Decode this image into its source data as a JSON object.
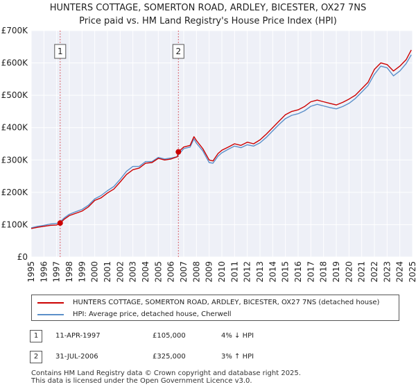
{
  "title_line1": "HUNTERS COTTAGE, SOMERTON ROAD, ARDLEY, BICESTER, OX27 7NS",
  "title_line2": "Price paid vs. HM Land Registry's House Price Index (HPI)",
  "chart_data": {
    "type": "line",
    "title": "HUNTERS COTTAGE, SOMERTON ROAD, ARDLEY, BICESTER, OX27 7NS — Price paid vs. HM Land Registry's House Price Index (HPI)",
    "xlabel": "",
    "ylabel": "",
    "xlim": [
      1995,
      2025
    ],
    "ylim": [
      0,
      700000
    ],
    "grid": true,
    "x_ticks": [
      "1995",
      "1996",
      "1997",
      "1998",
      "1999",
      "2000",
      "2001",
      "2002",
      "2003",
      "2004",
      "2005",
      "2006",
      "2007",
      "2008",
      "2009",
      "2010",
      "2011",
      "2012",
      "2013",
      "2014",
      "2015",
      "2016",
      "2017",
      "2018",
      "2019",
      "2020",
      "2021",
      "2022",
      "2023",
      "2024",
      "2025"
    ],
    "y_ticks": [
      {
        "value": 0,
        "label": "£0"
      },
      {
        "value": 100000,
        "label": "£100K"
      },
      {
        "value": 200000,
        "label": "£200K"
      },
      {
        "value": 300000,
        "label": "£300K"
      },
      {
        "value": 400000,
        "label": "£400K"
      },
      {
        "value": 500000,
        "label": "£500K"
      },
      {
        "value": 600000,
        "label": "£600K"
      },
      {
        "value": 700000,
        "label": "£700K"
      }
    ],
    "series": [
      {
        "name": "HUNTERS COTTAGE, SOMERTON ROAD, ARDLEY, BICESTER, OX27 7NS (detached house)",
        "color": "#cc0000",
        "x": [
          1995.0,
          1995.5,
          1996.0,
          1996.5,
          1997.0,
          1997.28,
          1997.6,
          1998.0,
          1998.5,
          1999.0,
          1999.5,
          2000.0,
          2000.5,
          2001.0,
          2001.5,
          2002.0,
          2002.5,
          2003.0,
          2003.5,
          2004.0,
          2004.5,
          2005.0,
          2005.5,
          2006.0,
          2006.5,
          2006.58,
          2007.0,
          2007.5,
          2007.8,
          2008.0,
          2008.5,
          2009.0,
          2009.3,
          2009.7,
          2010.0,
          2010.5,
          2011.0,
          2011.5,
          2012.0,
          2012.5,
          2013.0,
          2013.5,
          2014.0,
          2014.5,
          2015.0,
          2015.5,
          2016.0,
          2016.5,
          2017.0,
          2017.5,
          2018.0,
          2018.5,
          2019.0,
          2019.5,
          2020.0,
          2020.5,
          2021.0,
          2021.5,
          2022.0,
          2022.5,
          2023.0,
          2023.5,
          2024.0,
          2024.5,
          2024.9
        ],
        "values": [
          88000,
          92000,
          95000,
          98000,
          99000,
          105000,
          117000,
          128000,
          135000,
          142000,
          155000,
          175000,
          183000,
          198000,
          210000,
          232000,
          255000,
          270000,
          275000,
          290000,
          292000,
          305000,
          300000,
          303000,
          310000,
          325000,
          340000,
          345000,
          372000,
          360000,
          335000,
          300000,
          297000,
          320000,
          330000,
          340000,
          350000,
          345000,
          355000,
          350000,
          362000,
          380000,
          400000,
          420000,
          440000,
          450000,
          455000,
          465000,
          480000,
          485000,
          480000,
          475000,
          470000,
          478000,
          488000,
          500000,
          520000,
          540000,
          580000,
          600000,
          595000,
          575000,
          590000,
          610000,
          640000
        ]
      },
      {
        "name": "HPI: Average price, detached house, Cherwell",
        "color": "#5b8fc9",
        "x": [
          1995.0,
          1995.5,
          1996.0,
          1996.5,
          1997.0,
          1997.28,
          1997.6,
          1998.0,
          1998.5,
          1999.0,
          1999.5,
          2000.0,
          2000.5,
          2001.0,
          2001.5,
          2002.0,
          2002.5,
          2003.0,
          2003.5,
          2004.0,
          2004.5,
          2005.0,
          2005.5,
          2006.0,
          2006.5,
          2006.58,
          2007.0,
          2007.5,
          2007.8,
          2008.0,
          2008.5,
          2009.0,
          2009.3,
          2009.7,
          2010.0,
          2010.5,
          2011.0,
          2011.5,
          2012.0,
          2012.5,
          2013.0,
          2013.5,
          2014.0,
          2014.5,
          2015.0,
          2015.5,
          2016.0,
          2016.5,
          2017.0,
          2017.5,
          2018.0,
          2018.5,
          2019.0,
          2019.5,
          2020.0,
          2020.5,
          2021.0,
          2021.5,
          2022.0,
          2022.5,
          2023.0,
          2023.5,
          2024.0,
          2024.5,
          2024.9
        ],
        "values": [
          90000,
          95000,
          98000,
          102000,
          104000,
          109000,
          121000,
          132000,
          140000,
          147000,
          160000,
          180000,
          190000,
          205000,
          218000,
          240000,
          265000,
          280000,
          280000,
          295000,
          295000,
          308000,
          303000,
          306000,
          310000,
          316000,
          335000,
          340000,
          365000,
          352000,
          328000,
          292000,
          290000,
          312000,
          322000,
          333000,
          343000,
          338000,
          347000,
          343000,
          353000,
          370000,
          390000,
          410000,
          428000,
          438000,
          443000,
          452000,
          466000,
          472000,
          467000,
          462000,
          458000,
          465000,
          475000,
          490000,
          510000,
          530000,
          565000,
          590000,
          585000,
          560000,
          575000,
          598000,
          625000
        ]
      }
    ],
    "sale_markers": [
      {
        "label": "1",
        "x": 1997.28,
        "value": 105000
      },
      {
        "label": "2",
        "x": 2006.58,
        "value": 325000
      }
    ]
  },
  "legend": [
    {
      "text": "HUNTERS COTTAGE, SOMERTON ROAD, ARDLEY, BICESTER, OX27 7NS (detached house)",
      "color": "#cc0000"
    },
    {
      "text": "HPI: Average price, detached house, Cherwell",
      "color": "#5b8fc9"
    }
  ],
  "transactions": [
    {
      "num": "1",
      "date": "11-APR-1997",
      "price": "£105,000",
      "hpi": "4% ↓ HPI"
    },
    {
      "num": "2",
      "date": "31-JUL-2006",
      "price": "£325,000",
      "hpi": "3% ↑ HPI"
    }
  ],
  "footer_line1": "Contains HM Land Registry data © Crown copyright and database right 2025.",
  "footer_line2": "This data is licensed under the Open Government Licence v3.0."
}
